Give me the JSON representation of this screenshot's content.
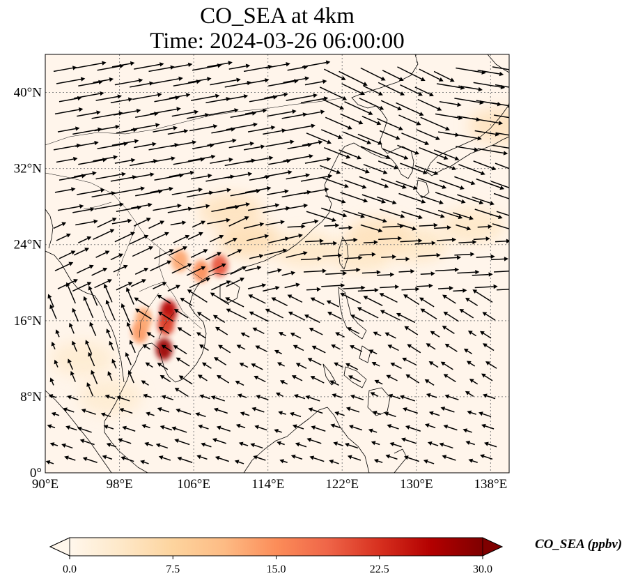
{
  "title": {
    "line1": "CO_SEA at 4km",
    "line2": "Time: 2024-03-26 06:00:00"
  },
  "map": {
    "lon_range": [
      90,
      140
    ],
    "lat_range": [
      0,
      44
    ],
    "lon_ticks": [
      {
        "value": 90,
        "label": "90°E"
      },
      {
        "value": 98,
        "label": "98°E"
      },
      {
        "value": 106,
        "label": "106°E"
      },
      {
        "value": 114,
        "label": "114°E"
      },
      {
        "value": 122,
        "label": "122°E"
      },
      {
        "value": 130,
        "label": "130°E"
      },
      {
        "value": 138,
        "label": "138°E"
      }
    ],
    "lat_ticks": [
      {
        "value": 0,
        "label": "0°"
      },
      {
        "value": 8,
        "label": "8°N"
      },
      {
        "value": 16,
        "label": "16°N"
      },
      {
        "value": 24,
        "label": "24°N"
      },
      {
        "value": 32,
        "label": "32°N"
      },
      {
        "value": 40,
        "label": "40°N"
      }
    ],
    "gridlines": true,
    "colors": {
      "background": "#fff5eb",
      "coast": "#000000",
      "grid": "#808080",
      "arrow": "#000000"
    },
    "plume_ppbv": [
      {
        "lon": 102.8,
        "lat": 13.0,
        "value": 28
      },
      {
        "lon": 103.3,
        "lat": 17.0,
        "value": 26
      },
      {
        "lon": 103.0,
        "lat": 15.6,
        "value": 22
      },
      {
        "lon": 100.2,
        "lat": 14.8,
        "value": 14
      },
      {
        "lon": 100.6,
        "lat": 16.2,
        "value": 13
      },
      {
        "lon": 108.8,
        "lat": 21.8,
        "value": 20
      },
      {
        "lon": 106.8,
        "lat": 21.2,
        "value": 15
      },
      {
        "lon": 104.5,
        "lat": 22.3,
        "value": 13
      },
      {
        "lon": 112.0,
        "lat": 24.5,
        "value": 6
      },
      {
        "lon": 110.0,
        "lat": 27.5,
        "value": 5
      },
      {
        "lon": 118.0,
        "lat": 23.5,
        "value": 4
      },
      {
        "lon": 124.0,
        "lat": 23.0,
        "value": 4
      },
      {
        "lon": 130.0,
        "lat": 24.0,
        "value": 4
      },
      {
        "lon": 136.0,
        "lat": 26.0,
        "value": 4
      },
      {
        "lon": 139.0,
        "lat": 36.5,
        "value": 5
      },
      {
        "lon": 126.0,
        "lat": 25.0,
        "value": 5
      },
      {
        "lon": 94.0,
        "lat": 12.0,
        "value": 3
      },
      {
        "lon": 97.0,
        "lat": 8.0,
        "value": 3
      }
    ]
  },
  "colorbar": {
    "title": "CO_SEA (ppbv)",
    "ticks": [
      {
        "value": 0.0,
        "label": "0.0"
      },
      {
        "value": 7.5,
        "label": "7.5"
      },
      {
        "value": 15.0,
        "label": "15.0"
      },
      {
        "value": 22.5,
        "label": "22.5"
      },
      {
        "value": 30.0,
        "label": "30.0"
      }
    ],
    "range": [
      0,
      30
    ],
    "extend": "both",
    "colormap": "OrRd",
    "stops": [
      "#fff7ec",
      "#fee8c8",
      "#fdd49e",
      "#fdbb84",
      "#fc8d59",
      "#ef6548",
      "#d7301f",
      "#b30000",
      "#7f0000"
    ]
  }
}
